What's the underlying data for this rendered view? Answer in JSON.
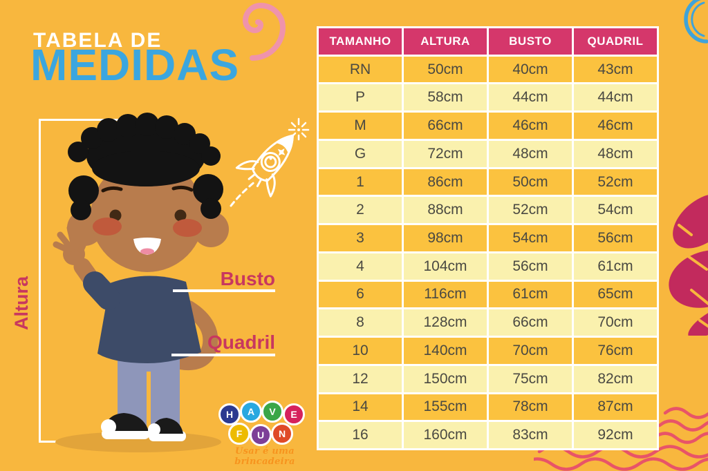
{
  "title": {
    "line1": "TABELA DE",
    "line2": "MEDIDAS"
  },
  "figure_labels": {
    "altura": "Altura",
    "busto": "Busto",
    "quadril": "Quadril"
  },
  "logo": {
    "letters": [
      {
        "char": "H",
        "color": "#2B3990"
      },
      {
        "char": "A",
        "color": "#29A8E0"
      },
      {
        "char": "V",
        "color": "#3AA648"
      },
      {
        "char": "E",
        "color": "#D6215C"
      },
      {
        "char": "F",
        "color": "#EDBB00"
      },
      {
        "char": "U",
        "color": "#7D3F97"
      },
      {
        "char": "N",
        "color": "#DF4A28"
      }
    ],
    "tagline": "Usar é uma brincadeira"
  },
  "table": {
    "headers": [
      "TAMANHO",
      "ALTURA",
      "BUSTO",
      "QUADRIL"
    ],
    "rows": [
      [
        "RN",
        "50cm",
        "40cm",
        "43cm"
      ],
      [
        "P",
        "58cm",
        "44cm",
        "44cm"
      ],
      [
        "M",
        "66cm",
        "46cm",
        "46cm"
      ],
      [
        "G",
        "72cm",
        "48cm",
        "48cm"
      ],
      [
        "1",
        "86cm",
        "50cm",
        "52cm"
      ],
      [
        "2",
        "88cm",
        "52cm",
        "54cm"
      ],
      [
        "3",
        "98cm",
        "54cm",
        "56cm"
      ],
      [
        "4",
        "104cm",
        "56cm",
        "61cm"
      ],
      [
        "6",
        "116cm",
        "61cm",
        "65cm"
      ],
      [
        "8",
        "128cm",
        "66cm",
        "70cm"
      ],
      [
        "10",
        "140cm",
        "70cm",
        "76cm"
      ],
      [
        "12",
        "150cm",
        "75cm",
        "82cm"
      ],
      [
        "14",
        "155cm",
        "78cm",
        "87cm"
      ],
      [
        "16",
        "160cm",
        "83cm",
        "92cm"
      ]
    ]
  },
  "colors": {
    "background": "#F8B73E",
    "header_pink": "#D5376B",
    "row_orange": "#FBC23F",
    "row_light": "#FAF1AE",
    "cell_text": "#4A4942",
    "title_blue": "#3BA6DF",
    "label_pink": "#C8375F",
    "spiral_pink": "#EF93AB",
    "doodle_blue": "#3FA3D9",
    "heart_magenta": "#C22A5D",
    "wave_red": "#E85468"
  }
}
